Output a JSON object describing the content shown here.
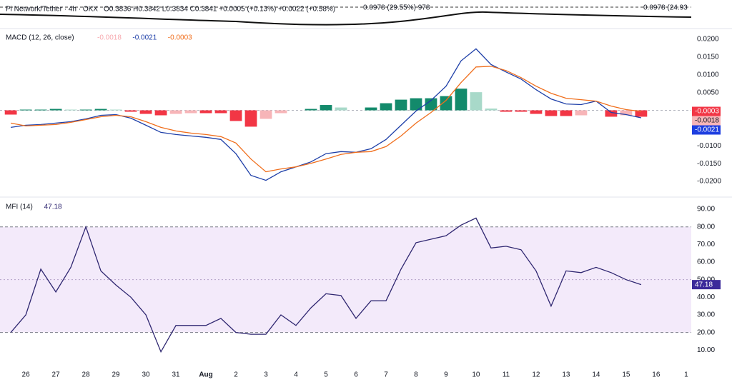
{
  "header": {
    "title": "Pi Network/Tether · 4h · OKX",
    "ohlc": "O0.3836 H0.3842 L0.3834 C0.3841 +0.0005 (+0.13%) +0.0022 (+0.58%)",
    "annotations": [
      "0.0978 (29.55%) 978",
      "0.0978 (24.93"
    ]
  },
  "chart_data": [
    {
      "type": "macd",
      "title": "MACD (12, 26, close)",
      "x": [
        -0.5,
        0,
        0.5,
        1,
        1.5,
        2,
        2.5,
        3,
        3.5,
        4,
        4.5,
        5,
        5.5,
        6,
        6.5,
        7,
        7.5,
        8,
        8.5,
        9,
        9.5,
        10,
        10.5,
        11,
        11.5,
        12,
        12.5,
        13,
        13.5,
        14,
        14.5,
        15,
        15.5,
        16,
        16.5,
        17,
        17.5,
        18,
        18.5,
        19,
        19.5,
        20,
        20.5
      ],
      "xlim": [
        -0.86,
        22.17
      ],
      "ylim": [
        -0.0232,
        0.022
      ],
      "zero_line": 0,
      "yticks": [
        {
          "value": 0.02,
          "label": "0.0200"
        },
        {
          "value": 0.015,
          "label": "0.0150"
        },
        {
          "value": 0.01,
          "label": "0.0100"
        },
        {
          "value": 0.005,
          "label": "0.0050"
        },
        {
          "value": -0.01,
          "label": "-0.0100"
        },
        {
          "value": -0.015,
          "label": "-0.0150"
        },
        {
          "value": -0.02,
          "label": "-0.0200"
        }
      ],
      "series": [
        {
          "name": "Histogram",
          "kind": "histogram",
          "color": "#f7a9ae",
          "colors": [
            "#138a6b",
            "#a8d9c9",
            "#f23645",
            "#f7b5b8"
          ],
          "values": [
            -0.0012,
            0.0002,
            0.0002,
            0.0004,
            0.0002,
            0.0002,
            0.0004,
            0.0002,
            -0.0004,
            -0.001,
            -0.0014,
            -0.001,
            -0.0008,
            -0.0008,
            -0.0008,
            -0.003,
            -0.0046,
            -0.0024,
            -0.0008,
            0,
            0.0004,
            0.0015,
            0.0008,
            0,
            0.0008,
            0.002,
            0.003,
            0.0034,
            0.0034,
            0.004,
            0.0061,
            0.0051,
            0.0005,
            -0.0004,
            -0.0004,
            -0.001,
            -0.0016,
            -0.0016,
            -0.0014,
            0,
            -0.0018,
            -0.0014,
            -0.0018
          ]
        },
        {
          "name": "MACD",
          "kind": "line",
          "color": "#1e3fa8",
          "values": [
            -0.0048,
            -0.0042,
            -0.004,
            -0.0036,
            -0.0032,
            -0.0024,
            -0.0014,
            -0.0012,
            -0.0022,
            -0.0042,
            -0.0062,
            -0.0068,
            -0.0072,
            -0.0076,
            -0.0082,
            -0.0122,
            -0.0183,
            -0.0197,
            -0.0173,
            -0.0159,
            -0.0145,
            -0.0122,
            -0.0116,
            -0.0118,
            -0.0108,
            -0.0082,
            -0.0042,
            -0.0002,
            0.0028,
            0.0068,
            0.0139,
            0.0173,
            0.0129,
            0.0108,
            0.0088,
            0.0058,
            0.0032,
            0.0018,
            0.0016,
            0.0026,
            -0.0006,
            -0.0012,
            -0.0021
          ]
        },
        {
          "name": "Signal",
          "kind": "line",
          "color": "#f06e1c",
          "values": [
            -0.0036,
            -0.0044,
            -0.0042,
            -0.004,
            -0.0034,
            -0.0026,
            -0.0018,
            -0.0014,
            -0.0018,
            -0.0032,
            -0.0048,
            -0.0058,
            -0.0064,
            -0.0068,
            -0.0074,
            -0.0092,
            -0.0137,
            -0.0173,
            -0.0165,
            -0.0159,
            -0.0149,
            -0.0137,
            -0.0124,
            -0.0118,
            -0.0116,
            -0.0102,
            -0.0072,
            -0.0036,
            -0.0006,
            0.0028,
            0.0078,
            0.0122,
            0.0124,
            0.0112,
            0.0092,
            0.0068,
            0.0048,
            0.0034,
            0.003,
            0.0026,
            0.0012,
            0.0002,
            -0.0003
          ]
        }
      ],
      "badge_colors": [
        "#f23645",
        "#f7b5b8",
        "#1e3fe0"
      ]
    },
    {
      "type": "line",
      "title": "MFI (14)",
      "x": [
        -0.5,
        0,
        0.5,
        1,
        1.5,
        2,
        2.5,
        3,
        3.5,
        4,
        4.5,
        5,
        5.5,
        6,
        6.5,
        7,
        7.5,
        8,
        8.5,
        9,
        9.5,
        10,
        10.5,
        11,
        11.5,
        12,
        12.5,
        13,
        13.5,
        14,
        14.5,
        15,
        15.5,
        16,
        16.5,
        17,
        17.5,
        18,
        18.5,
        19,
        19.5,
        20,
        20.5
      ],
      "xlim": [
        -0.86,
        22.17
      ],
      "ylim": [
        2,
        94.5
      ],
      "band": [
        20,
        80
      ],
      "midline": 50,
      "band_color": "#f3eafa",
      "yticks": [
        {
          "value": 90,
          "label": "90.00"
        },
        {
          "value": 80,
          "label": "80.00"
        },
        {
          "value": 70,
          "label": "70.00"
        },
        {
          "value": 60,
          "label": "60.00"
        },
        {
          "value": 50,
          "label": "50.00"
        },
        {
          "value": 40,
          "label": "40.00"
        },
        {
          "value": 30,
          "label": "30.00"
        },
        {
          "value": 20,
          "label": "20.00"
        },
        {
          "value": 10,
          "label": "10.00"
        }
      ],
      "xticks": [
        {
          "value": 0,
          "label": "26"
        },
        {
          "value": 1,
          "label": "27"
        },
        {
          "value": 2,
          "label": "28"
        },
        {
          "value": 3,
          "label": "29"
        },
        {
          "value": 4,
          "label": "30"
        },
        {
          "value": 5,
          "label": "31"
        },
        {
          "value": 6,
          "label": "Aug"
        },
        {
          "value": 7,
          "label": "2"
        },
        {
          "value": 8,
          "label": "3"
        },
        {
          "value": 9,
          "label": "4"
        },
        {
          "value": 10,
          "label": "5"
        },
        {
          "value": 11,
          "label": "6"
        },
        {
          "value": 12,
          "label": "7"
        },
        {
          "value": 13,
          "label": "8"
        },
        {
          "value": 14,
          "label": "9"
        },
        {
          "value": 15,
          "label": "10"
        },
        {
          "value": 16,
          "label": "11"
        },
        {
          "value": 17,
          "label": "12"
        },
        {
          "value": 18,
          "label": "13"
        },
        {
          "value": 19,
          "label": "14"
        },
        {
          "value": 20,
          "label": "15"
        },
        {
          "value": 21,
          "label": "16"
        },
        {
          "value": 22,
          "label": "1"
        }
      ],
      "series": [
        {
          "name": "MFI",
          "kind": "line",
          "color": "#2e2670",
          "values": [
            20,
            30,
            56,
            43,
            57,
            80,
            55,
            47,
            40,
            30,
            9,
            24,
            24,
            24,
            28,
            20,
            19,
            19,
            30,
            24,
            34,
            42,
            41,
            28,
            38,
            38,
            56,
            71,
            73,
            75,
            81,
            85,
            68,
            69,
            67,
            55,
            35,
            55,
            54,
            57,
            54,
            50,
            47.18
          ]
        }
      ],
      "badge_colors": [
        "#3b2a9a"
      ]
    }
  ]
}
